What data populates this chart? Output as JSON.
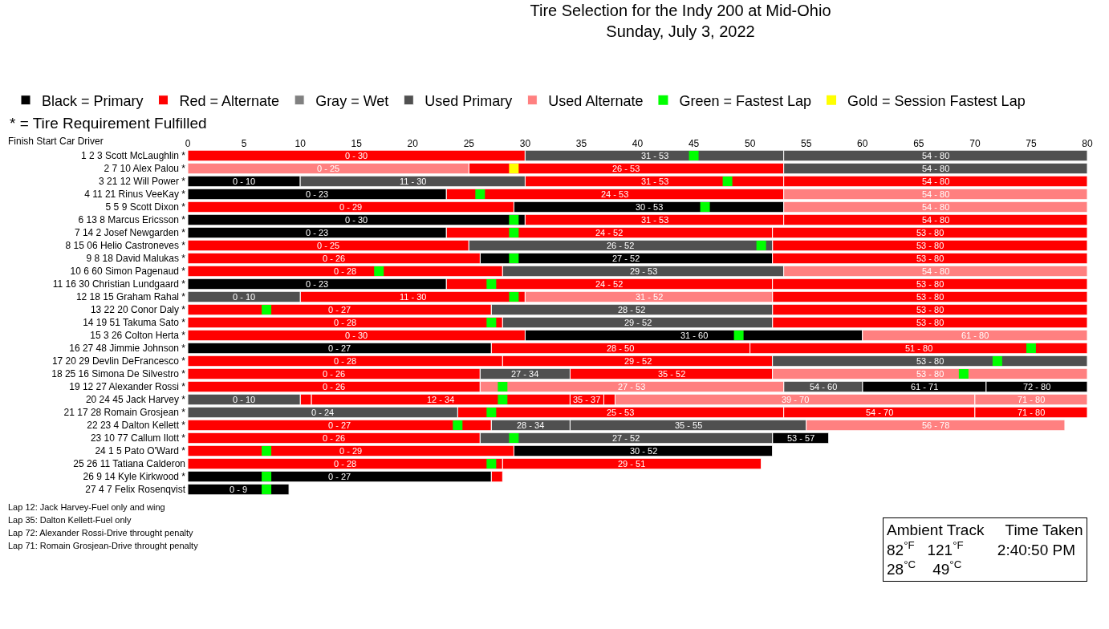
{
  "chart_data": {
    "type": "bar",
    "orientation": "horizontal",
    "title": "Tire Selection for the Indy 200 at Mid-Ohio",
    "subtitle": "Sunday, July 3, 2022",
    "ylabel": "Finish Start Car Driver",
    "categories": [
      "1 2 3 Scott McLaughlin *",
      "2 7 10 Alex Palou *",
      "3 21 12 Will Power *",
      "4 11 21 Rinus VeeKay *",
      "5 5 9 Scott Dixon *",
      "6 13 8 Marcus Ericsson *",
      "7 14 2 Josef Newgarden *",
      "8 15 06 Helio Castroneves *",
      "9 8 18 David Malukas *",
      "10 6 60 Simon Pagenaud *",
      "11 16 30 Christian Lundgaard *",
      "12 18 15 Graham Rahal *",
      "13 22 20 Conor Daly *",
      "14 19 51 Takuma Sato *",
      "15 3 26 Colton Herta *",
      "16 27 48 Jimmie Johnson *",
      "17 20 29 Devlin DeFrancesco *",
      "18 25 16 Simona De Silvestro *",
      "19 12 27 Alexander Rossi *",
      "20 24 45 Jack Harvey *",
      "21 17 28 Romain Grosjean *",
      "22 23 4 Dalton Kellett *",
      "23 10 77 Callum Ilott *",
      "24 1 5 Pato O'Ward *",
      "25 26 11 Tatiana Calderon",
      "26 9 14 Kyle Kirkwood *",
      "27 4 7 Felix Rosenqvist"
    ],
    "xlim": [
      0,
      80
    ],
    "xticks": [
      0,
      5,
      10,
      15,
      20,
      25,
      30,
      35,
      40,
      45,
      50,
      55,
      60,
      65,
      70,
      75,
      80
    ],
    "legend": "top left",
    "marker": "square",
    "series": [
      {
        "name": "Black = Primary",
        "color": "#000000",
        "values": [
          null,
          null,
          10,
          23,
          24,
          30,
          23,
          null,
          26,
          null,
          23,
          null,
          null,
          null,
          30,
          27,
          null,
          null,
          11,
          null,
          null,
          null,
          5,
          23,
          null,
          27,
          9
        ],
        "base": [
          null,
          null,
          0,
          0,
          29,
          0,
          0,
          null,
          26,
          null,
          0,
          null,
          null,
          null,
          30,
          0,
          null,
          null,
          60,
          null,
          null,
          null,
          52,
          29,
          null,
          0,
          0
        ]
      },
      {
        "color": "#000000",
        "values": [
          null,
          null,
          null,
          null,
          null,
          null,
          null,
          null,
          null,
          null,
          null,
          null,
          null,
          null,
          null,
          null,
          null,
          null,
          9,
          null,
          null,
          null,
          null,
          null,
          null,
          null,
          null
        ],
        "base": [
          null,
          null,
          null,
          null,
          null,
          null,
          null,
          null,
          null,
          null,
          null,
          null,
          null,
          null,
          null,
          null,
          null,
          null,
          71,
          null,
          null,
          null,
          null,
          null,
          null,
          null,
          null
        ]
      },
      {
        "name": "Red = Alternate",
        "color": "#ff0000",
        "values": [
          30,
          28,
          23,
          30,
          29,
          23,
          29,
          25,
          26,
          28,
          29,
          20,
          27,
          28,
          30,
          23,
          28,
          26,
          26,
          1,
          29,
          27,
          26,
          29,
          28,
          1,
          null
        ],
        "base": [
          0,
          25,
          30,
          23,
          0,
          30,
          23,
          0,
          0,
          0,
          23,
          10,
          0,
          0,
          0,
          27,
          0,
          0,
          0,
          10,
          24,
          0,
          0,
          0,
          0,
          27,
          null
        ]
      },
      {
        "color": "#ff0000",
        "values": [
          null,
          null,
          27,
          null,
          null,
          27,
          28,
          28,
          28,
          null,
          28,
          28,
          28,
          28,
          null,
          30,
          24,
          18,
          null,
          23,
          17,
          null,
          null,
          null,
          23,
          null,
          null
        ],
        "base": [
          null,
          null,
          53,
          null,
          null,
          53,
          52,
          52,
          52,
          null,
          52,
          52,
          52,
          52,
          null,
          50,
          28,
          34,
          null,
          11,
          53,
          null,
          null,
          null,
          28,
          null,
          null
        ]
      },
      {
        "color": "#ff0000",
        "values": [
          null,
          null,
          null,
          null,
          null,
          null,
          null,
          null,
          null,
          null,
          null,
          null,
          null,
          null,
          null,
          null,
          null,
          null,
          null,
          3,
          10,
          null,
          null,
          null,
          null,
          null,
          null
        ],
        "base": [
          null,
          null,
          null,
          null,
          null,
          null,
          null,
          null,
          null,
          null,
          null,
          null,
          null,
          null,
          null,
          null,
          null,
          null,
          null,
          34,
          70,
          null,
          null,
          null,
          null,
          null,
          null
        ]
      },
      {
        "color": "#ff0000",
        "values": [
          null,
          null,
          null,
          null,
          null,
          null,
          null,
          null,
          null,
          null,
          null,
          null,
          null,
          null,
          null,
          null,
          null,
          null,
          null,
          1,
          null,
          null,
          null,
          null,
          null,
          null,
          null
        ],
        "base": [
          null,
          null,
          null,
          null,
          null,
          null,
          null,
          null,
          null,
          null,
          null,
          null,
          null,
          null,
          null,
          null,
          null,
          null,
          null,
          37,
          null,
          null,
          null,
          null,
          null,
          null,
          null
        ]
      },
      {
        "name": "Gray = Wet",
        "color": "#808080",
        "values": [
          null,
          null,
          null,
          null,
          null,
          null,
          null,
          null,
          null,
          null,
          null,
          null,
          null,
          null,
          null,
          null,
          null,
          null,
          null,
          null,
          null,
          null,
          null,
          null,
          null,
          null,
          null
        ]
      },
      {
        "name": "Used Primary",
        "color": "#505050",
        "values": [
          23,
          27,
          20,
          null,
          null,
          null,
          null,
          27,
          null,
          25,
          null,
          10,
          25,
          24,
          null,
          null,
          28,
          8,
          7,
          10,
          24,
          7,
          26,
          null,
          null,
          null,
          null
        ],
        "base": [
          30,
          53,
          10,
          null,
          null,
          null,
          null,
          25,
          null,
          28,
          null,
          0,
          27,
          28,
          null,
          null,
          52,
          26,
          53,
          0,
          0,
          27,
          26,
          null,
          null,
          null,
          null
        ]
      },
      {
        "color": "#505050",
        "values": [
          27,
          null,
          null,
          null,
          null,
          null,
          null,
          null,
          null,
          null,
          null,
          null,
          null,
          null,
          null,
          null,
          null,
          null,
          null,
          null,
          null,
          21,
          null,
          null,
          null,
          null,
          null
        ],
        "base": [
          53,
          null,
          null,
          null,
          null,
          null,
          null,
          null,
          null,
          null,
          null,
          null,
          null,
          null,
          null,
          null,
          null,
          null,
          null,
          null,
          null,
          34,
          null,
          null,
          null,
          null,
          null
        ]
      },
      {
        "name": "Used Alternate",
        "color": "#ff8080",
        "values": [
          null,
          25,
          null,
          27,
          27,
          null,
          null,
          null,
          null,
          27,
          null,
          22,
          null,
          null,
          20,
          null,
          null,
          28,
          27,
          32,
          null,
          23,
          null,
          null,
          null,
          null,
          null
        ],
        "base": [
          null,
          0,
          null,
          53,
          53,
          null,
          null,
          null,
          null,
          53,
          null,
          30,
          null,
          null,
          60,
          null,
          null,
          52,
          26,
          38,
          null,
          55,
          null,
          null,
          null,
          null,
          null
        ]
      },
      {
        "color": "#ff8080",
        "values": [
          null,
          null,
          null,
          null,
          null,
          null,
          null,
          null,
          null,
          null,
          null,
          null,
          null,
          null,
          null,
          null,
          null,
          null,
          null,
          10,
          null,
          null,
          null,
          null,
          null,
          null,
          null
        ],
        "base": [
          null,
          null,
          null,
          null,
          null,
          null,
          null,
          null,
          null,
          null,
          null,
          null,
          null,
          null,
          null,
          null,
          null,
          null,
          null,
          70,
          null,
          null,
          null,
          null,
          null,
          null,
          null
        ]
      },
      {
        "name": "Green = Fastest Lap",
        "type": "scatter",
        "color": "#00ff00",
        "values": [
          45,
          null,
          48,
          26,
          46,
          29,
          29,
          51,
          29,
          17,
          27,
          29,
          7,
          27,
          49,
          75,
          72,
          69,
          28,
          28,
          27,
          24,
          29,
          7,
          27,
          7,
          7
        ]
      },
      {
        "name": "Gold = Session Fastest Lap",
        "type": "scatter",
        "color": "#ffff00",
        "values": [
          null,
          29,
          null,
          null,
          null,
          null,
          null,
          null,
          null,
          null,
          null,
          null,
          null,
          null,
          null,
          null,
          null,
          null,
          null,
          null,
          null,
          null,
          null,
          null,
          null,
          null,
          null
        ]
      }
    ],
    "annotations": [
      "* = Tire Requirement Fulfilled",
      "Lap 12: Jack Harvey-Fuel only and wing",
      "Lap 35: Dalton Kellett-Fuel only",
      "Lap 72: Alexander Rossi-Drive throught penalty",
      "Lap 71: Romain Grosjean-Drive throught penalty",
      "Ambient Track     Time Taken\n82$^{°F}$   121$^{°F}$        2:40:50 PM\n28$^{°C}$    49$^{°C}$",
      {
        "text": "0 - 30",
        "x": 15,
        "y": "1 2 3 Scott McLaughlin *"
      },
      {
        "text": "31 - 53",
        "x": 41.5,
        "y": "1 2 3 Scott McLaughlin *"
      },
      {
        "text": "54 - 80",
        "x": 66.5,
        "y": "1 2 3 Scott McLaughlin *"
      },
      {
        "text": "0 - 25",
        "x": 12.5,
        "y": "2 7 10 Alex Palou *"
      },
      {
        "text": "26 - 53",
        "x": 39,
        "y": "2 7 10 Alex Palou *"
      },
      {
        "text": "54 - 80",
        "x": 66.5,
        "y": "2 7 10 Alex Palou *"
      },
      {
        "text": "0 - 10",
        "x": 5,
        "y": "3 21 12 Will Power *"
      },
      {
        "text": "11 - 30",
        "x": 20,
        "y": "3 21 12 Will Power *"
      },
      {
        "text": "31 - 53",
        "x": 41.5,
        "y": "3 21 12 Will Power *"
      },
      {
        "text": "54 - 80",
        "x": 66.5,
        "y": "3 21 12 Will Power *"
      },
      {
        "text": "0 - 23",
        "x": 11.5,
        "y": "4 11 21 Rinus VeeKay *"
      },
      {
        "text": "24 - 53",
        "x": 38,
        "y": "4 11 21 Rinus VeeKay *"
      },
      {
        "text": "54 - 80",
        "x": 66.5,
        "y": "4 11 21 Rinus VeeKay *"
      },
      {
        "text": "0 - 29",
        "x": 14.5,
        "y": "5 5 9 Scott Dixon *"
      },
      {
        "text": "30 - 53",
        "x": 41,
        "y": "5 5 9 Scott Dixon *"
      },
      {
        "text": "54 - 80",
        "x": 66.5,
        "y": "5 5 9 Scott Dixon *"
      },
      {
        "text": "0 - 30",
        "x": 15,
        "y": "6 13 8 Marcus Ericsson *"
      },
      {
        "text": "31 - 53",
        "x": 41.5,
        "y": "6 13 8 Marcus Ericsson *"
      },
      {
        "text": "54 - 80",
        "x": 66.5,
        "y": "6 13 8 Marcus Ericsson *"
      },
      {
        "text": "0 - 23",
        "x": 11.5,
        "y": "7 14 2 Josef Newgarden *"
      },
      {
        "text": "24 - 52",
        "x": 37.5,
        "y": "7 14 2 Josef Newgarden *"
      },
      {
        "text": "53 - 80",
        "x": 66,
        "y": "7 14 2 Josef Newgarden *"
      },
      {
        "text": "0 - 25",
        "x": 12.5,
        "y": "8 15 06 Helio Castroneves *"
      },
      {
        "text": "26 - 52",
        "x": 38.5,
        "y": "8 15 06 Helio Castroneves *"
      },
      {
        "text": "53 - 80",
        "x": 66,
        "y": "8 15 06 Helio Castroneves *"
      },
      {
        "text": "0 - 26",
        "x": 13,
        "y": "9 8 18 David Malukas *"
      },
      {
        "text": "27 - 52",
        "x": 39,
        "y": "9 8 18 David Malukas *"
      },
      {
        "text": "53 - 80",
        "x": 66,
        "y": "9 8 18 David Malukas *"
      },
      {
        "text": "0 - 28",
        "x": 14,
        "y": "10 6 60 Simon Pagenaud *"
      },
      {
        "text": "29 - 53",
        "x": 40.5,
        "y": "10 6 60 Simon Pagenaud *"
      },
      {
        "text": "54 - 80",
        "x": 66.5,
        "y": "10 6 60 Simon Pagenaud *"
      },
      {
        "text": "0 - 23",
        "x": 11.5,
        "y": "11 16 30 Christian Lundgaard *"
      },
      {
        "text": "24 - 52",
        "x": 37.5,
        "y": "11 16 30 Christian Lundgaard *"
      },
      {
        "text": "53 - 80",
        "x": 66,
        "y": "11 16 30 Christian Lundgaard *"
      },
      {
        "text": "0 - 10",
        "x": 5,
        "y": "12 18 15 Graham Rahal *"
      },
      {
        "text": "11 - 30",
        "x": 20,
        "y": "12 18 15 Graham Rahal *"
      },
      {
        "text": "31 - 52",
        "x": 41,
        "y": "12 18 15 Graham Rahal *"
      },
      {
        "text": "53 - 80",
        "x": 66,
        "y": "12 18 15 Graham Rahal *"
      },
      {
        "text": "0 - 27",
        "x": 13.5,
        "y": "13 22 20 Conor Daly *"
      },
      {
        "text": "28 - 52",
        "x": 39.5,
        "y": "13 22 20 Conor Daly *"
      },
      {
        "text": "53 - 80",
        "x": 66,
        "y": "13 22 20 Conor Daly *"
      },
      {
        "text": "0 - 28",
        "x": 14,
        "y": "14 19 51 Takuma Sato *"
      },
      {
        "text": "29 - 52",
        "x": 40,
        "y": "14 19 51 Takuma Sato *"
      },
      {
        "text": "53 - 80",
        "x": 66,
        "y": "14 19 51 Takuma Sato *"
      },
      {
        "text": "0 - 30",
        "x": 15,
        "y": "15 3 26 Colton Herta *"
      },
      {
        "text": "31 - 60",
        "x": 45,
        "y": "15 3 26 Colton Herta *"
      },
      {
        "text": "61 - 80",
        "x": 70,
        "y": "15 3 26 Colton Herta *"
      },
      {
        "text": "0 - 27",
        "x": 13.5,
        "y": "16 27 48 Jimmie Johnson *"
      },
      {
        "text": "28 - 50",
        "x": 38.5,
        "y": "16 27 48 Jimmie Johnson *"
      },
      {
        "text": "51 - 80",
        "x": 65,
        "y": "16 27 48 Jimmie Johnson *"
      },
      {
        "text": "0 - 28",
        "x": 14,
        "y": "17 20 29 Devlin DeFrancesco *"
      },
      {
        "text": "29 - 52",
        "x": 40,
        "y": "17 20 29 Devlin DeFrancesco *"
      },
      {
        "text": "53 - 80",
        "x": 66,
        "y": "17 20 29 Devlin DeFrancesco *"
      },
      {
        "text": "0 - 26",
        "x": 13,
        "y": "18 25 16 Simona De Silvestro *"
      },
      {
        "text": "27 - 34",
        "x": 30,
        "y": "18 25 16 Simona De Silvestro *"
      },
      {
        "text": "35 - 52",
        "x": 43,
        "y": "18 25 16 Simona De Silvestro *"
      },
      {
        "text": "53 - 80",
        "x": 66,
        "y": "18 25 16 Simona De Silvestro *"
      },
      {
        "text": "0 - 26",
        "x": 13,
        "y": "19 12 27 Alexander Rossi *"
      },
      {
        "text": "27 - 53",
        "x": 39.5,
        "y": "19 12 27 Alexander Rossi *"
      },
      {
        "text": "54 - 60",
        "x": 56.5,
        "y": "19 12 27 Alexander Rossi *"
      },
      {
        "text": "61 - 71",
        "x": 65.5,
        "y": "19 12 27 Alexander Rossi *"
      },
      {
        "text": "72 - 80",
        "x": 75.5,
        "y": "19 12 27 Alexander Rossi *"
      },
      {
        "text": "0 - 10",
        "x": 5,
        "y": "20 24 45 Jack Harvey *"
      },
      {
        "text": "12 - 34",
        "x": 22.5,
        "y": "20 24 45 Jack Harvey *"
      },
      {
        "text": "35 - 37",
        "x": 35.5,
        "y": "20 24 45 Jack Harvey *"
      },
      {
        "text": "39 - 70",
        "x": 54,
        "y": "20 24 45 Jack Harvey *"
      },
      {
        "text": "71 - 80",
        "x": 75,
        "y": "20 24 45 Jack Harvey *"
      },
      {
        "text": "0 - 24",
        "x": 12,
        "y": "21 17 28 Romain Grosjean *"
      },
      {
        "text": "25 - 53",
        "x": 38.5,
        "y": "21 17 28 Romain Grosjean *"
      },
      {
        "text": "54 - 70",
        "x": 61.5,
        "y": "21 17 28 Romain Grosjean *"
      },
      {
        "text": "71 - 80",
        "x": 75,
        "y": "21 17 28 Romain Grosjean *"
      },
      {
        "text": "0 - 27",
        "x": 13.5,
        "y": "22 23 4 Dalton Kellett *"
      },
      {
        "text": "28 - 34",
        "x": 30.5,
        "y": "22 23 4 Dalton Kellett *"
      },
      {
        "text": "35 - 55",
        "x": 44.5,
        "y": "22 23 4 Dalton Kellett *"
      },
      {
        "text": "56 - 78",
        "x": 66.5,
        "y": "22 23 4 Dalton Kellett *"
      },
      {
        "text": "0 - 26",
        "x": 13,
        "y": "23 10 77 Callum Ilott *"
      },
      {
        "text": "27 - 52",
        "x": 39,
        "y": "23 10 77 Callum Ilott *"
      },
      {
        "text": "53 - 57",
        "x": 54.5,
        "y": "23 10 77 Callum Ilott *"
      },
      {
        "text": "0 - 29",
        "x": 14.5,
        "y": "24 1 5 Pato O'Ward *"
      },
      {
        "text": "30 - 52",
        "x": 40.5,
        "y": "24 1 5 Pato O'Ward *"
      },
      {
        "text": "0 - 28",
        "x": 14,
        "y": "25 26 11 Tatiana Calderon"
      },
      {
        "text": "29 - 51",
        "x": 39.5,
        "y": "25 26 11 Tatiana Calderon"
      },
      {
        "text": "0 - 27",
        "x": 13.5,
        "y": "26 9 14 Kyle Kirkwood *"
      },
      {
        "text": "0 - 9",
        "x": 4.5,
        "y": "27 4 7 Felix Rosenqvist"
      }
    ]
  }
}
